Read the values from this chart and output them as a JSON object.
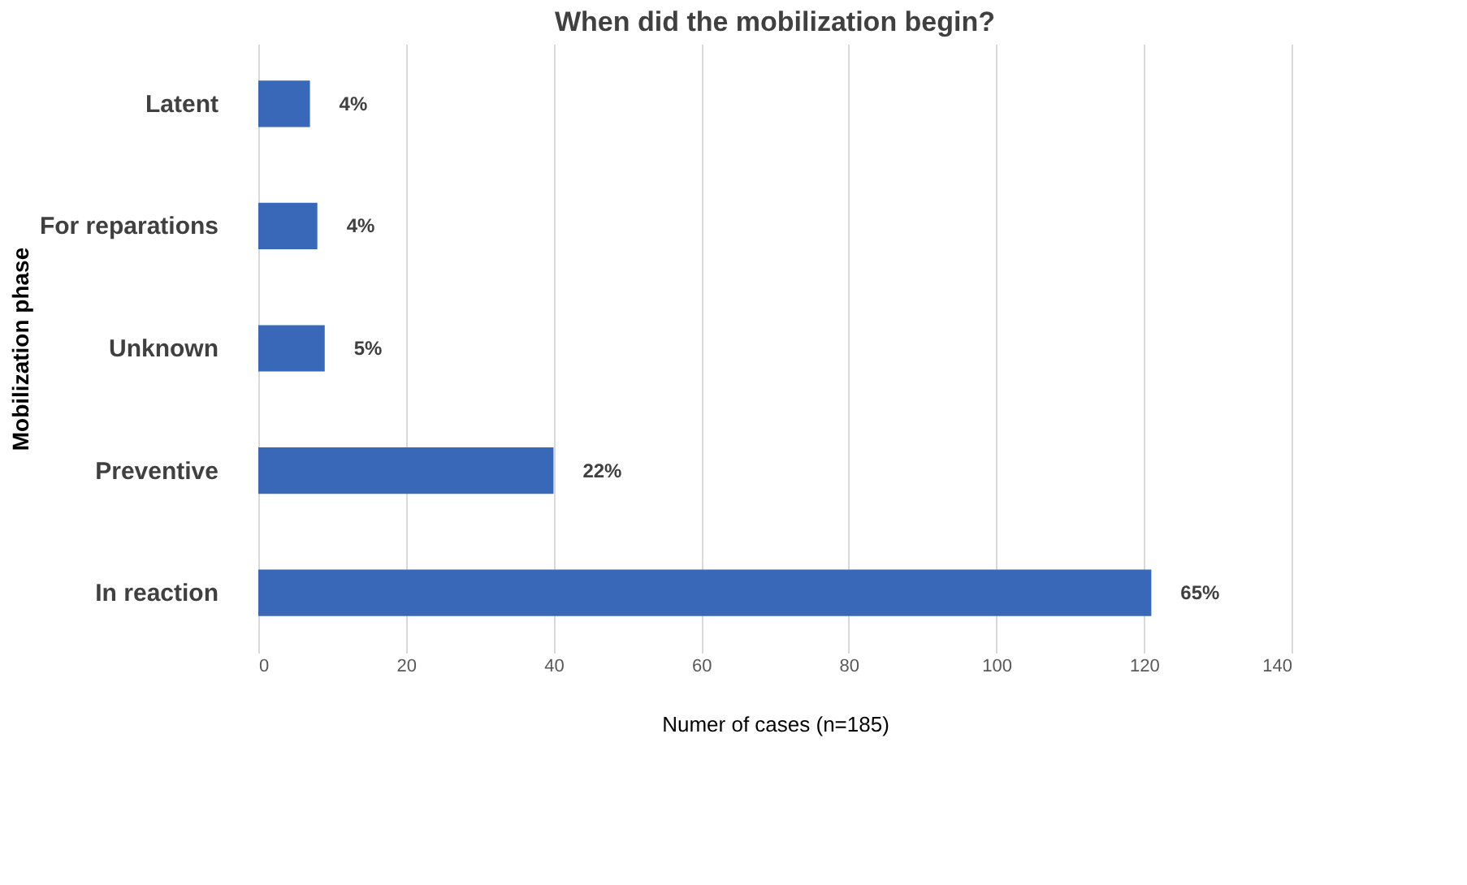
{
  "chart_data": {
    "type": "bar",
    "orientation": "horizontal",
    "title": "When did the mobilization begin?",
    "xlabel": "Numer of cases (n=185)",
    "ylabel": "Mobilization phase",
    "categories": [
      "Latent",
      "For reparations",
      "Unknown",
      "Preventive",
      "In reaction"
    ],
    "values": [
      7,
      8,
      9,
      40,
      121
    ],
    "color": "#3a68b8",
    "annotations": [
      {
        "text": "4%",
        "x": 7,
        "y": "Latent"
      },
      {
        "text": "4%",
        "x": 8,
        "y": "For reparations"
      },
      {
        "text": "5%",
        "x": 9,
        "y": "Unknown"
      },
      {
        "text": "22%",
        "x": 40,
        "y": "Preventive"
      },
      {
        "text": "65%",
        "x": 121,
        "y": "In reaction"
      }
    ],
    "xlim": [
      0,
      140
    ],
    "xticks": [
      0,
      20,
      40,
      60,
      80,
      100,
      120,
      140
    ],
    "grid": "x"
  }
}
